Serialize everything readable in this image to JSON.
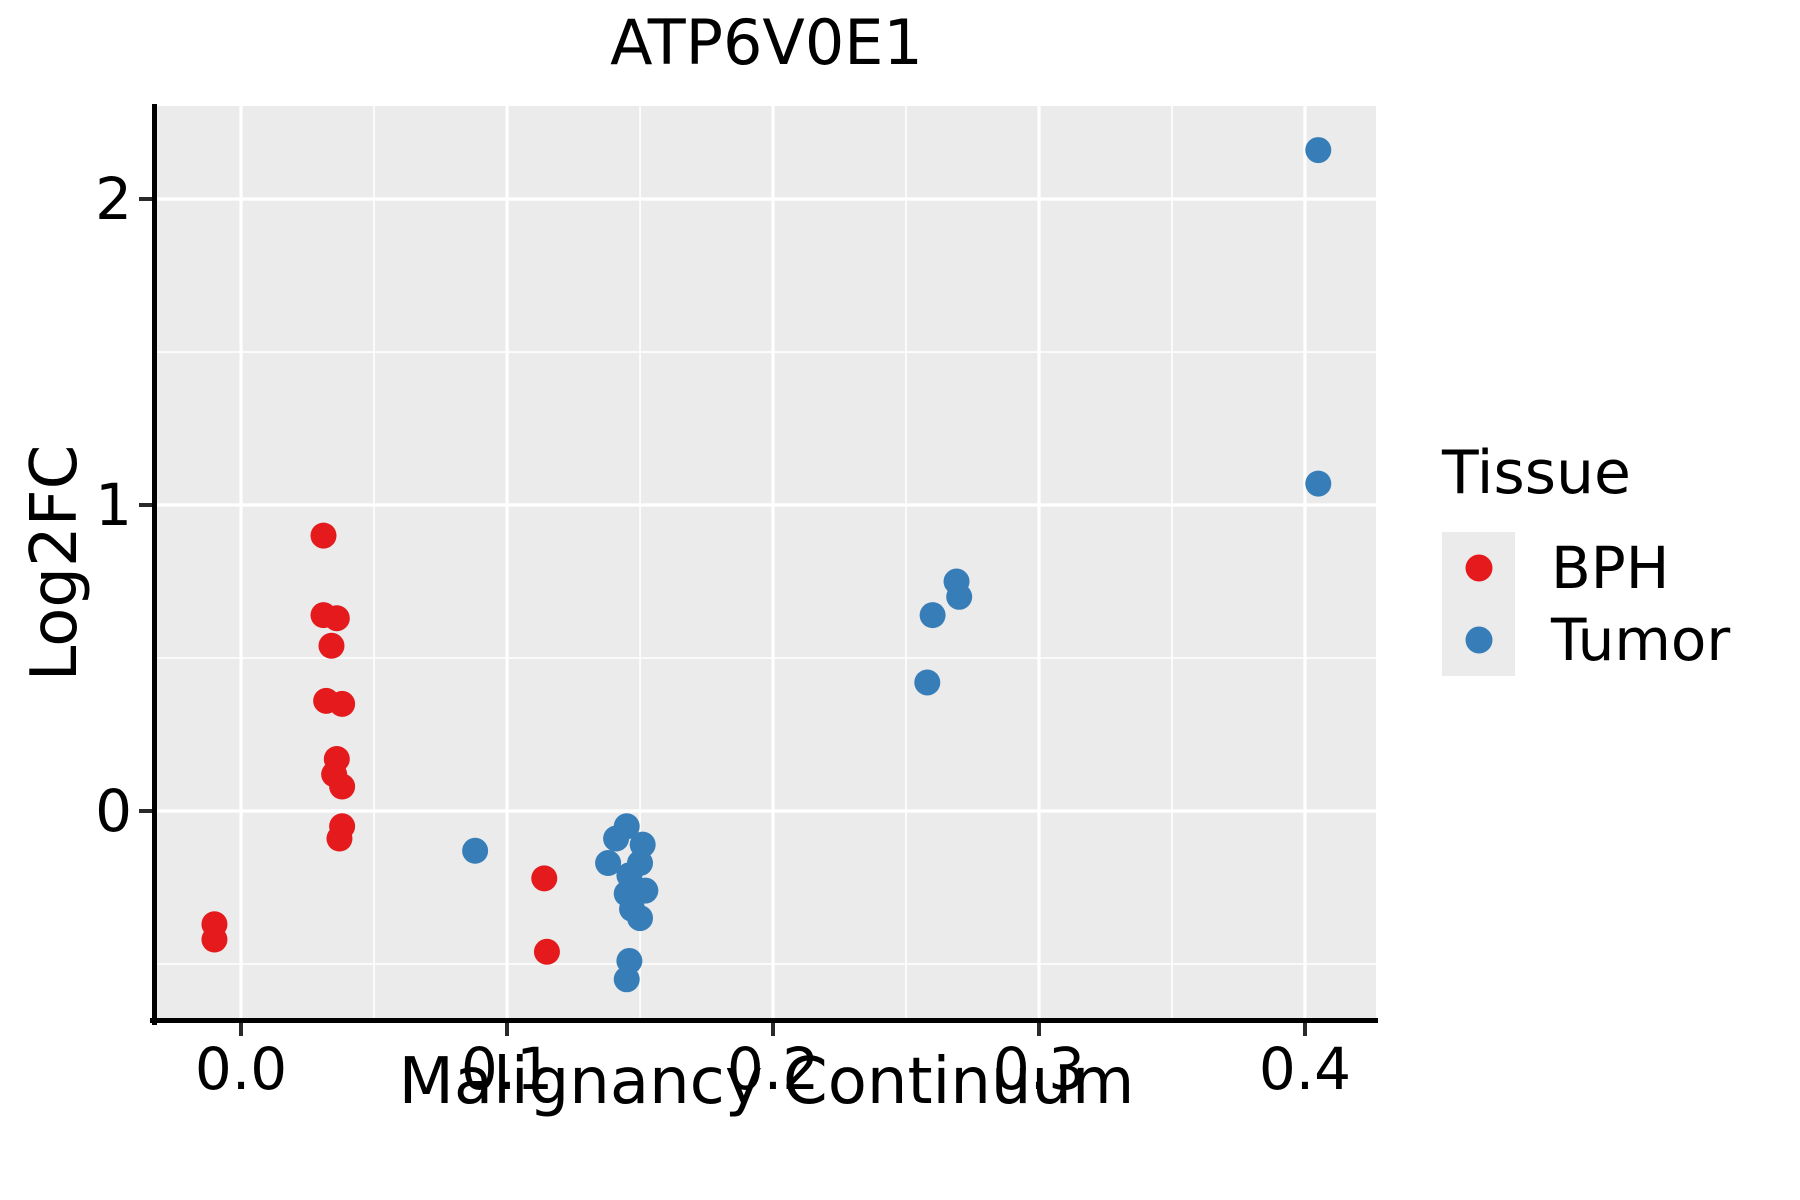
{
  "title": "ATP6V0E1",
  "chart_data": {
    "type": "scatter",
    "title": "ATP6V0E1",
    "xlabel": "Malignancy Continuum",
    "ylabel": "Log2FC",
    "xlim": [
      -0.0316,
      0.4267
    ],
    "ylim": [
      -0.683,
      2.304
    ],
    "xticks": [
      0.0,
      0.1,
      0.2,
      0.3,
      0.4
    ],
    "xtick_labels": [
      "0.0",
      "0.1",
      "0.2",
      "0.3",
      "0.4"
    ],
    "yticks": [
      0,
      1,
      2
    ],
    "ytick_labels": [
      "0",
      "1",
      "2"
    ],
    "xminor": [
      0.05,
      0.15,
      0.25,
      0.35
    ],
    "yminor": [
      -0.5,
      0.5,
      1.5
    ],
    "grid": true,
    "panel_bg": "#EBEBEB",
    "grid_color": "#FFFFFF",
    "point_radius": 13,
    "legend_position": "right",
    "series": [
      {
        "name": "BPH",
        "color": "#E41A1C",
        "points": [
          [
            -0.01,
            -0.37
          ],
          [
            -0.01,
            -0.42
          ],
          [
            0.031,
            0.9
          ],
          [
            0.031,
            0.64
          ],
          [
            0.036,
            0.63
          ],
          [
            0.034,
            0.54
          ],
          [
            0.032,
            0.36
          ],
          [
            0.038,
            0.35
          ],
          [
            0.036,
            0.17
          ],
          [
            0.035,
            0.12
          ],
          [
            0.038,
            0.08
          ],
          [
            0.038,
            -0.05
          ],
          [
            0.037,
            -0.09
          ],
          [
            0.114,
            -0.22
          ],
          [
            0.115,
            -0.46
          ]
        ]
      },
      {
        "name": "Tumor",
        "color": "#377EB8",
        "points": [
          [
            0.088,
            -0.13
          ],
          [
            0.145,
            -0.05
          ],
          [
            0.141,
            -0.09
          ],
          [
            0.151,
            -0.11
          ],
          [
            0.138,
            -0.17
          ],
          [
            0.15,
            -0.17
          ],
          [
            0.146,
            -0.21
          ],
          [
            0.145,
            -0.27
          ],
          [
            0.152,
            -0.26
          ],
          [
            0.147,
            -0.32
          ],
          [
            0.15,
            -0.35
          ],
          [
            0.146,
            -0.49
          ],
          [
            0.145,
            -0.55
          ],
          [
            0.258,
            0.42
          ],
          [
            0.26,
            0.64
          ],
          [
            0.269,
            0.75
          ],
          [
            0.27,
            0.7
          ],
          [
            0.405,
            2.16
          ],
          [
            0.405,
            1.07
          ]
        ]
      }
    ]
  },
  "legend": {
    "title": "Tissue",
    "key_bg": "#EBEBEB",
    "items": [
      {
        "label": "BPH",
        "color": "#E41A1C"
      },
      {
        "label": "Tumor",
        "color": "#377EB8"
      }
    ]
  }
}
